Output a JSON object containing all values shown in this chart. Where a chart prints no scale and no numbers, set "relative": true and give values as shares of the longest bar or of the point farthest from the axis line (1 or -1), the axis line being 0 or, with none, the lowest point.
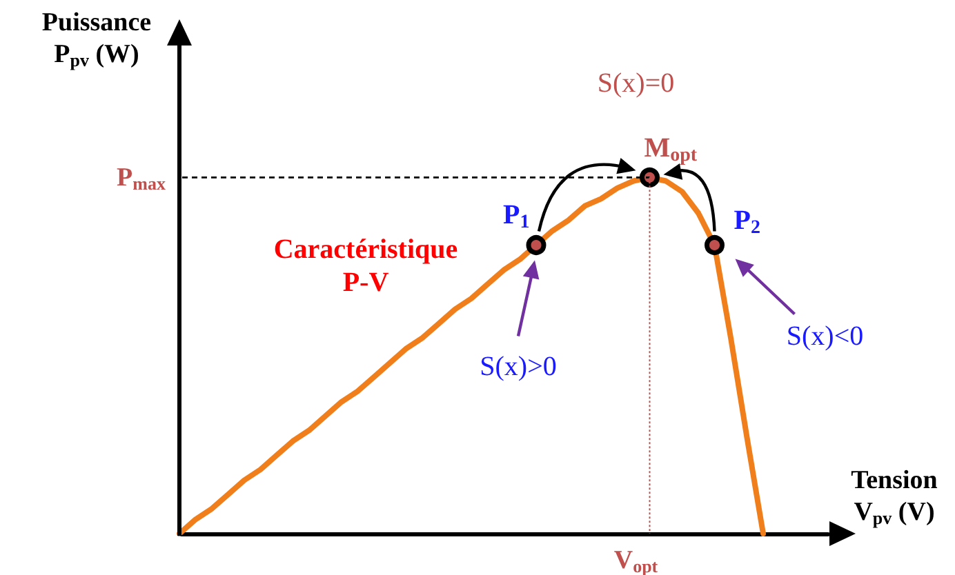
{
  "chart_data": {
    "type": "line",
    "relative": true,
    "xlabel": "Tension V$_{pv}$ (V)",
    "ylabel": "Puissance P$_{pv}$ (W)",
    "categories": [
      null,
      null,
      null,
      null,
      null,
      null,
      null,
      null,
      null,
      null,
      null,
      null,
      null,
      null,
      null,
      null,
      null,
      null,
      null,
      null,
      null,
      null,
      null,
      null,
      null,
      null,
      null,
      null,
      null,
      null,
      null,
      null,
      null,
      null,
      null,
      null,
      null,
      null,
      null,
      null,
      null
    ],
    "series": [
      {
        "color": "#f07f1b",
        "values": [
          0,
          0.04,
          0.07,
          0.11,
          0.15,
          0.18,
          0.22,
          0.26,
          0.29,
          0.33,
          0.37,
          0.4,
          0.44,
          0.48,
          0.52,
          0.55,
          0.59,
          0.63,
          0.66,
          0.7,
          0.74,
          0.77,
          0.81,
          0.85,
          0.88,
          0.92,
          0.94,
          0.97,
          0.99,
          1,
          0.99,
          0.96,
          0.9,
          0.81,
          0.55,
          0.27,
          0,
          null,
          null,
          null,
          null
        ]
      },
      {
        "color": "#000000",
        "marker": "circle",
        "values": [
          null,
          null,
          null,
          null,
          null,
          null,
          null,
          null,
          null,
          null,
          null,
          null,
          null,
          null,
          null,
          null,
          null,
          null,
          null,
          null,
          null,
          null,
          0.81,
          null,
          null,
          null,
          null,
          null,
          null,
          1,
          null,
          null,
          null,
          0.81,
          null,
          null,
          null,
          null,
          null,
          null,
          null
        ]
      }
    ],
    "annotations": [
      "P$_{1}$",
      "M$_{opt}$",
      "P$_{2}$",
      "S(x)>0",
      "S(x)=0",
      "S(x)<0",
      "Caractéristique P-V",
      "V$_{opt}$",
      "P$_{max}$"
    ]
  }
}
